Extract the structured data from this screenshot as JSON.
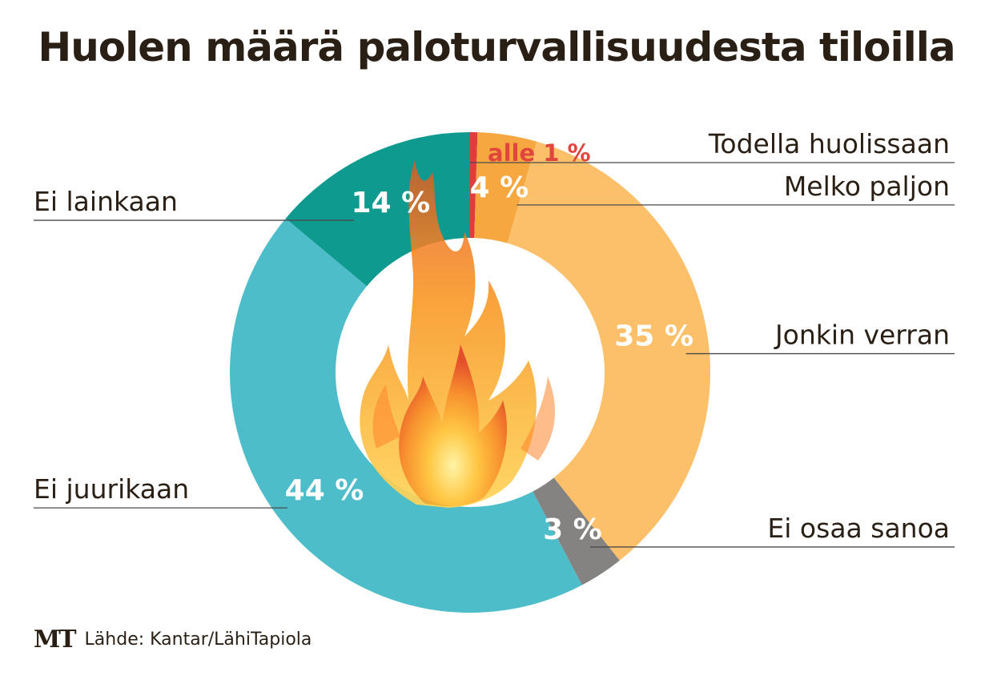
{
  "chart_data": {
    "type": "pie",
    "title": "Huolen määrä paloturvallisuudesta tiloilla",
    "slices": [
      {
        "name": "Todella huolissaan",
        "value": 0.5,
        "label": "alle 1 %",
        "color": "#e23d3d",
        "label_color": "#e0463e"
      },
      {
        "name": "Melko paljon",
        "value": 4,
        "label": "4 %",
        "color": "#f7a740",
        "label_color": "#ffffff"
      },
      {
        "name": "Jonkin verran",
        "value": 35,
        "label": "35 %",
        "color": "#fcc06a",
        "label_color": "#ffffff"
      },
      {
        "name": "Ei osaa sanoa",
        "value": 3,
        "label": "3 %",
        "color": "#858381",
        "label_color": "#ffffff"
      },
      {
        "name": "Ei juurikaan",
        "value": 44,
        "label": "44 %",
        "color": "#4cbdc9",
        "label_color": "#ffffff"
      },
      {
        "name": "Ei lainkaan",
        "value": 14,
        "label": "14 %",
        "color": "#0e9a8e",
        "label_color": "#ffffff"
      }
    ]
  },
  "source": {
    "logo": "MT",
    "text": "Lähde: Kantar/LähiTapiola"
  },
  "center_icon": "flame-icon"
}
